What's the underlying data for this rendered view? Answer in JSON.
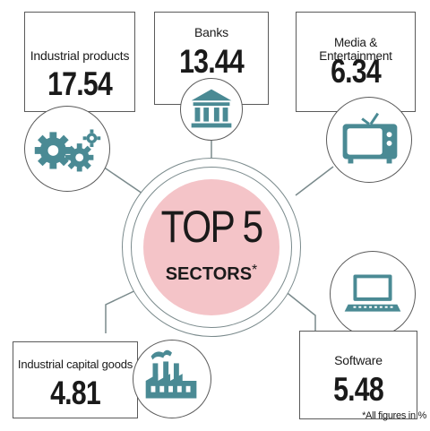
{
  "center": {
    "title": "TOP 5",
    "subtitle": "SECTORS",
    "asterisk": "*"
  },
  "sectors": [
    {
      "label": "Industrial products",
      "value": "17.54",
      "icon": "gears-icon"
    },
    {
      "label": "Banks",
      "value": "13.44",
      "icon": "bank-building-icon"
    },
    {
      "label": "Media & Entertainment",
      "value": "6.34",
      "icon": "television-icon"
    },
    {
      "label": "Industrial capital goods",
      "value": "4.81",
      "icon": "factory-icon"
    },
    {
      "label": "Software",
      "value": "5.48",
      "icon": "laptop-icon"
    }
  ],
  "footnote": "*All figures in %",
  "colors": {
    "accent_circle": "#f4c4c8",
    "icon": "#4a8a94",
    "border": "#5a5a5a"
  }
}
